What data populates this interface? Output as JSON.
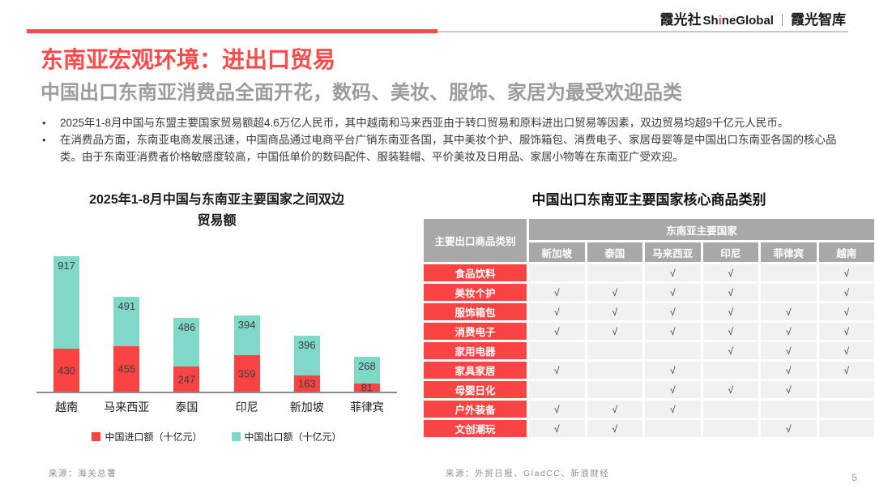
{
  "header": {
    "brand_cn": "霞光社",
    "brand_en_pre": "Sh",
    "brand_en_accent": "i",
    "brand_en_post": "neGlobal",
    "separator": "｜",
    "brand_suffix": "霞光智库"
  },
  "page": {
    "title": "东南亚宏观环境：进出口贸易",
    "subtitle": "中国出口东南亚消费品全面开花，数码、美妆、服饰、家居为最受欢迎品类",
    "bullet_marker": "•",
    "bullets": [
      "2025年1-8月中国与东盟主要国家贸易额超4.6万亿人民币，其中越南和马来西亚由于转口贸易和原料进出口贸易等因素，双边贸易均超9千亿元人民币。",
      "在消费品方面，东南亚电商发展迅速，中国商品通过电商平台广销东南亚各国，其中美妆个护、服饰箱包、消费电子、家居母婴等是中国出口东南亚各国的核心品类。由于东南亚消费者价格敏感度较高，中国低单价的数码配件、服装鞋帽、平价美妆及日用品、家居小物等在东南亚广受欢迎。"
    ]
  },
  "chart_data": {
    "type": "bar",
    "stacked": true,
    "title": "2025年1-8月中国与东南亚主要国家之间双边贸易额",
    "title_lines": [
      "2025年1-8月中国与东南亚主要国家之间双边",
      "贸易额"
    ],
    "categories": [
      "越南",
      "马来西亚",
      "泰国",
      "印尼",
      "新加坡",
      "菲律宾"
    ],
    "series": [
      {
        "name": "中国进口额（十亿元）",
        "color": "#FA4343",
        "values": [
          430,
          455,
          247,
          359,
          163,
          81
        ]
      },
      {
        "name": "中国出口额（十亿元）",
        "color": "#7FD8C8",
        "values": [
          917,
          491,
          486,
          394,
          396,
          268
        ]
      }
    ],
    "legend_position": "bottom",
    "grid": false,
    "axis_color": "#8C8C8C",
    "label_color": "#3d3d3d"
  },
  "table": {
    "title": "中国出口东南亚主要国家核心商品类别",
    "corner_header": "主要出口商品类别",
    "group_header": "东南亚主要国家",
    "columns": [
      "新加坡",
      "泰国",
      "马来西亚",
      "印尼",
      "菲律宾",
      "越南"
    ],
    "check_mark": "√",
    "header_color": "#A8A8A8",
    "row_label_color": "#FA4343",
    "cell_color": "#F1F1F1",
    "rows": [
      {
        "label": "食品饮料",
        "checks": [
          0,
          0,
          1,
          1,
          0,
          1
        ]
      },
      {
        "label": "美妆个护",
        "checks": [
          1,
          1,
          1,
          1,
          0,
          1
        ]
      },
      {
        "label": "服饰箱包",
        "checks": [
          1,
          1,
          1,
          1,
          1,
          1
        ]
      },
      {
        "label": "消费电子",
        "checks": [
          1,
          1,
          1,
          1,
          1,
          1
        ]
      },
      {
        "label": "家用电器",
        "checks": [
          0,
          0,
          0,
          1,
          1,
          1
        ]
      },
      {
        "label": "家具家居",
        "checks": [
          1,
          0,
          1,
          0,
          1,
          1
        ]
      },
      {
        "label": "母婴日化",
        "checks": [
          0,
          0,
          1,
          1,
          1,
          0
        ]
      },
      {
        "label": "户外装备",
        "checks": [
          1,
          1,
          1,
          0,
          0,
          0
        ]
      },
      {
        "label": "文创潮玩",
        "checks": [
          1,
          1,
          0,
          0,
          1,
          0
        ]
      }
    ]
  },
  "footer": {
    "source_left": "来源：海关总署",
    "source_right": "来源：外贸日报、GladCC、新浪财经",
    "page_number": "5"
  },
  "colors": {
    "accent_red": "#FB4A4A",
    "chart_red": "#FA4343",
    "chart_teal": "#7FD8C8",
    "subtitle_gray": "#9C9C9C"
  }
}
